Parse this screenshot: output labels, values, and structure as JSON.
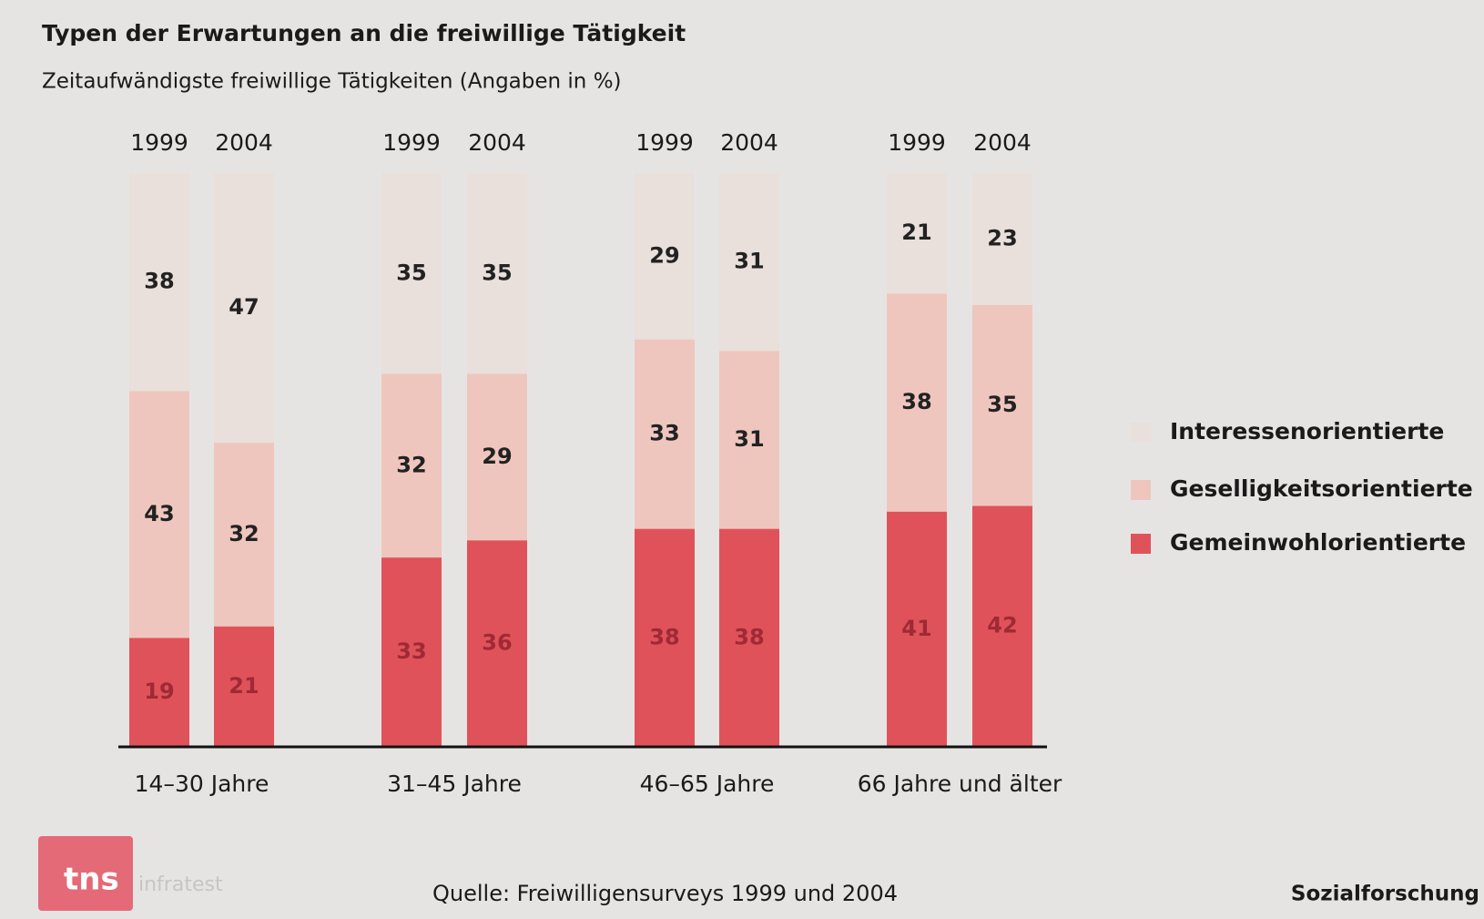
{
  "chart_data": {
    "type": "stacked_bar",
    "title": "Typen der Erwartungen an die freiwillige Tätigkeit",
    "subtitle": "Zeitaufwändigste freiwillige Tätigkeiten (Angaben in %)",
    "groups": [
      "14–30 Jahre",
      "31–45 Jahre",
      "46–65 Jahre",
      "66 Jahre und älter"
    ],
    "categories": [
      "1999",
      "2004",
      "1999",
      "2004",
      "1999",
      "2004",
      "1999",
      "2004"
    ],
    "series": [
      {
        "name": "Gemeinwohlorientierte",
        "color": "#e0525a",
        "values": [
          19,
          21,
          33,
          36,
          38,
          38,
          41,
          42
        ]
      },
      {
        "name": "Geselligkeitsorientierte",
        "color": "#efc6bd",
        "values": [
          43,
          32,
          32,
          29,
          33,
          31,
          38,
          35
        ]
      },
      {
        "name": "Interessenorientierte",
        "color": "#e9dfdb",
        "values": [
          38,
          47,
          35,
          35,
          29,
          31,
          21,
          23
        ]
      }
    ],
    "ylim": [
      0,
      100
    ],
    "source": "Quelle: Freiwilligensurveys 1999 und 2004",
    "footer_right": "Sozialforschung",
    "logo": {
      "text": "tns",
      "subtext": "infratest"
    }
  }
}
